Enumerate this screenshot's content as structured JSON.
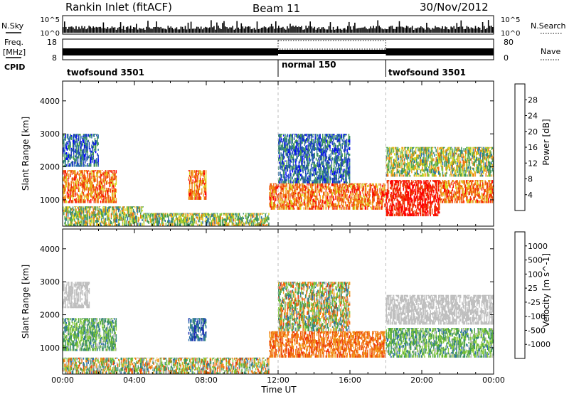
{
  "header": {
    "title": "Rankin Inlet (fitACF)",
    "beam": "Beam 11",
    "date": "30/Nov/2012"
  },
  "top_panel": {
    "left_labels": [
      "N.Sky",
      "Freq.",
      "[MHz]",
      "CPID"
    ],
    "right_labels": [
      "N.Search",
      "Nave"
    ],
    "nsky_ticks": [
      "10^5",
      "10^0"
    ],
    "freq_ticks": [
      "18",
      "8"
    ],
    "nave_ticks": [
      "80",
      "0"
    ],
    "cpid_segments": [
      {
        "label": "twofsound 3501",
        "start_h": 0,
        "end_h": 12
      },
      {
        "label": "normal 150",
        "start_h": 12,
        "end_h": 18
      },
      {
        "label": "twofsound 3501",
        "start_h": 18,
        "end_h": 24
      }
    ]
  },
  "chart_data": [
    {
      "type": "heatmap",
      "title": "Power",
      "xlabel": "Time UT",
      "ylabel": "Slant Range [km]",
      "xlim": [
        0,
        24
      ],
      "ylim": [
        200,
        4600
      ],
      "x_ticks": [
        "00:00",
        "04:00",
        "08:00",
        "12:00",
        "16:00",
        "20:00",
        "00:00"
      ],
      "y_ticks": [
        1000,
        2000,
        3000,
        4000
      ],
      "colorbar": {
        "label": "Power [dB]",
        "ticks": [
          "4",
          "8",
          "12",
          "16",
          "20",
          "24",
          "28"
        ],
        "colors": [
          "#0000ff",
          "#1f3fbf",
          "#2b6faa",
          "#3a8f6a",
          "#4a9e4a",
          "#86c440",
          "#d8d820",
          "#f2a020",
          "#f07010",
          "#ee3a0a",
          "#ff0000"
        ]
      },
      "regions": [
        {
          "t0": 0.0,
          "t1": 3.0,
          "r0": 900,
          "r1": 1900,
          "level": "high"
        },
        {
          "t0": 0.0,
          "t1": 2.0,
          "r0": 2000,
          "r1": 3000,
          "level": "low"
        },
        {
          "t0": 0.0,
          "t1": 4.5,
          "r0": 200,
          "r1": 800,
          "level": "mixed"
        },
        {
          "t0": 7.0,
          "t1": 8.0,
          "r0": 1000,
          "r1": 1900,
          "level": "high"
        },
        {
          "t0": 4.5,
          "t1": 11.5,
          "r0": 200,
          "r1": 600,
          "level": "mixed"
        },
        {
          "t0": 11.5,
          "t1": 18.0,
          "r0": 700,
          "r1": 1500,
          "level": "high"
        },
        {
          "t0": 12.0,
          "t1": 16.0,
          "r0": 1500,
          "r1": 3000,
          "level": "low"
        },
        {
          "t0": 18.0,
          "t1": 21.0,
          "r0": 500,
          "r1": 1600,
          "level": "max"
        },
        {
          "t0": 21.0,
          "t1": 24.0,
          "r0": 900,
          "r1": 1600,
          "level": "high"
        },
        {
          "t0": 18.0,
          "t1": 24.0,
          "r0": 1700,
          "r1": 2600,
          "level": "mixed"
        }
      ]
    },
    {
      "type": "heatmap",
      "title": "Velocity",
      "xlabel": "Time UT",
      "ylabel": "Slant Range [km]",
      "xlim": [
        0,
        24
      ],
      "ylim": [
        200,
        4600
      ],
      "x_ticks": [
        "00:00",
        "04:00",
        "08:00",
        "12:00",
        "16:00",
        "20:00",
        "00:00"
      ],
      "y_ticks": [
        1000,
        2000,
        3000,
        4000
      ],
      "colorbar": {
        "label": "Velocity [m s^-1]",
        "ticks": [
          "1000",
          "500",
          "100",
          "25",
          "-25",
          "-100",
          "-500",
          "-1000"
        ],
        "colors": [
          "#1a2fb0",
          "#2d6eaa",
          "#3a8f6a",
          "#5aad3a",
          "#8acc3a",
          "#bfbfbf",
          "#f2a020",
          "#f07010",
          "#ee3a0a",
          "#ff0000"
        ]
      },
      "regions": [
        {
          "t0": 0.0,
          "t1": 3.0,
          "r0": 900,
          "r1": 1900,
          "level": "pos"
        },
        {
          "t0": 0.0,
          "t1": 1.5,
          "r0": 2200,
          "r1": 3000,
          "level": "zero"
        },
        {
          "t0": 7.0,
          "t1": 8.0,
          "r0": 1200,
          "r1": 1900,
          "level": "strong_pos"
        },
        {
          "t0": 0.0,
          "t1": 11.5,
          "r0": 200,
          "r1": 700,
          "level": "mixed"
        },
        {
          "t0": 11.5,
          "t1": 18.0,
          "r0": 700,
          "r1": 1500,
          "level": "neg"
        },
        {
          "t0": 12.0,
          "t1": 16.0,
          "r0": 1500,
          "r1": 3000,
          "level": "mixed"
        },
        {
          "t0": 18.0,
          "t1": 24.0,
          "r0": 700,
          "r1": 1600,
          "level": "pos"
        },
        {
          "t0": 18.0,
          "t1": 24.0,
          "r0": 1700,
          "r1": 2600,
          "level": "zero"
        }
      ]
    }
  ]
}
